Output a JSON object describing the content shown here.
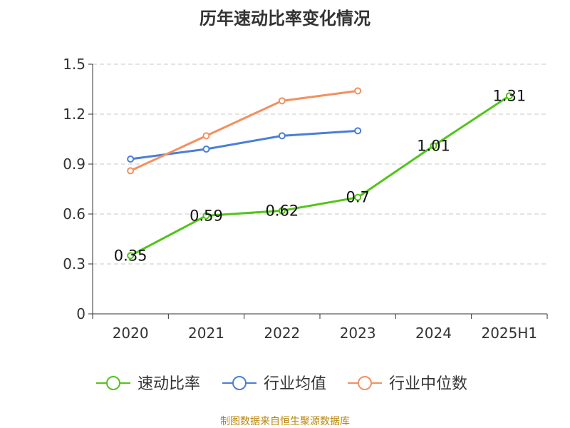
{
  "title": "历年速动比率变化情况",
  "source": "制图数据来自恒生聚源数据库",
  "chart_data": {
    "type": "line",
    "title": "历年速动比率变化情况",
    "categories": [
      "2020",
      "2021",
      "2022",
      "2023",
      "2024",
      "2025H1"
    ],
    "y_ticks": [
      "0",
      "0.3",
      "0.6",
      "0.9",
      "1.2",
      "1.5"
    ],
    "ylim": [
      0,
      1.5
    ],
    "grid": true,
    "legend_position": "bottom",
    "series": [
      {
        "name": "速动比率",
        "color": "#52c41a",
        "values": [
          0.35,
          0.59,
          0.62,
          0.7,
          1.01,
          1.31
        ],
        "labels": [
          "0.35",
          "0.59",
          "0.62",
          "0.7",
          "1.01",
          "1.31"
        ]
      },
      {
        "name": "行业均值",
        "color": "#4a7fd6",
        "values": [
          0.93,
          0.99,
          1.07,
          1.1,
          null,
          null
        ]
      },
      {
        "name": "行业中位数",
        "color": "#f39060",
        "values": [
          0.86,
          1.07,
          1.28,
          1.34,
          null,
          null
        ]
      }
    ]
  }
}
